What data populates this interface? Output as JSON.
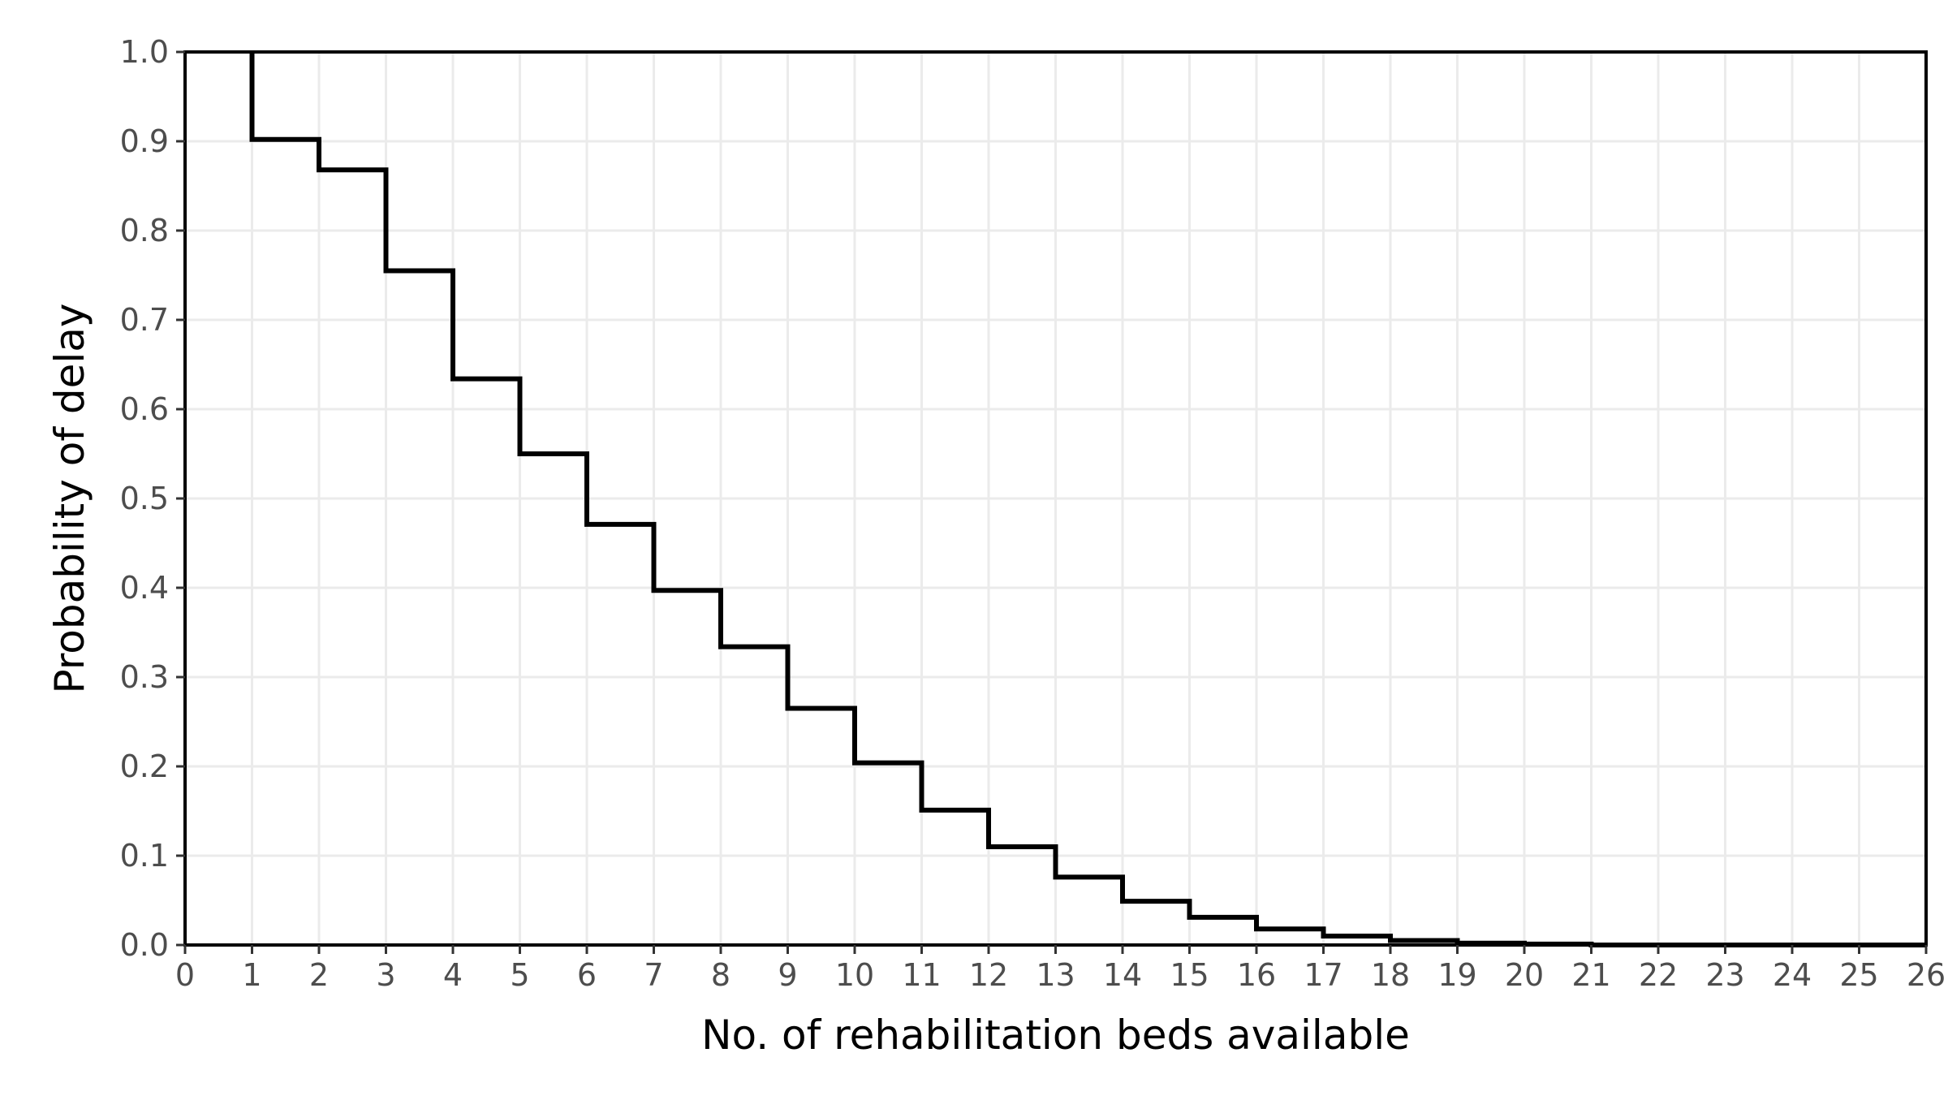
{
  "chart_data": {
    "type": "line",
    "style": "step",
    "title": "",
    "xlabel": "No. of rehabilitation beds available",
    "ylabel": "Probability of delay",
    "xlim": [
      0,
      26
    ],
    "ylim": [
      0,
      1
    ],
    "x_ticks": [
      "0",
      "1",
      "2",
      "3",
      "4",
      "5",
      "6",
      "7",
      "8",
      "9",
      "10",
      "11",
      "12",
      "13",
      "14",
      "15",
      "16",
      "17",
      "18",
      "19",
      "20",
      "21",
      "22",
      "23",
      "24",
      "25",
      "26"
    ],
    "y_ticks": [
      "0.0",
      "0.1",
      "0.2",
      "0.3",
      "0.4",
      "0.5",
      "0.6",
      "0.7",
      "0.8",
      "0.9",
      "1.0"
    ],
    "grid": true,
    "line_color": "#000000",
    "series": [
      {
        "x": [
          1,
          2,
          3,
          4,
          5,
          6,
          7,
          8,
          9,
          10,
          11,
          12,
          13,
          14,
          15,
          16,
          17,
          18,
          19,
          20,
          21,
          22,
          23,
          24,
          25,
          26
        ],
        "values": [
          0.902,
          0.868,
          0.755,
          0.634,
          0.55,
          0.471,
          0.397,
          0.334,
          0.265,
          0.204,
          0.151,
          0.11,
          0.076,
          0.049,
          0.031,
          0.018,
          0.01,
          0.005,
          0.002,
          0.001,
          0.0,
          0.0,
          0.0,
          0.0,
          0.0,
          0.0
        ]
      }
    ]
  }
}
